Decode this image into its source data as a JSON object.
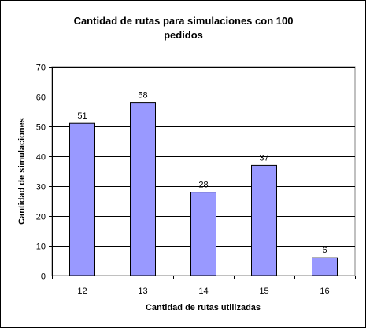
{
  "chart_data": {
    "type": "bar",
    "title_lines": [
      "Cantidad de rutas para simulaciones con 100",
      "pedidos"
    ],
    "xlabel": "Cantidad de rutas utilizadas",
    "ylabel": "Cantidad de simulaciones",
    "categories": [
      "12",
      "13",
      "14",
      "15",
      "16"
    ],
    "values": [
      51,
      58,
      28,
      37,
      6
    ],
    "data_labels": [
      "51",
      "58",
      "28",
      "37",
      "6"
    ],
    "ylim": [
      0,
      70
    ],
    "yticks": [
      "0",
      "10",
      "20",
      "30",
      "40",
      "50",
      "60",
      "70"
    ],
    "grid": true,
    "legend": "none",
    "colors": {
      "bar_fill": "#9999ff",
      "bar_stroke": "#000000",
      "plot_bg": "#ffffff",
      "gridline": "#000000"
    }
  }
}
